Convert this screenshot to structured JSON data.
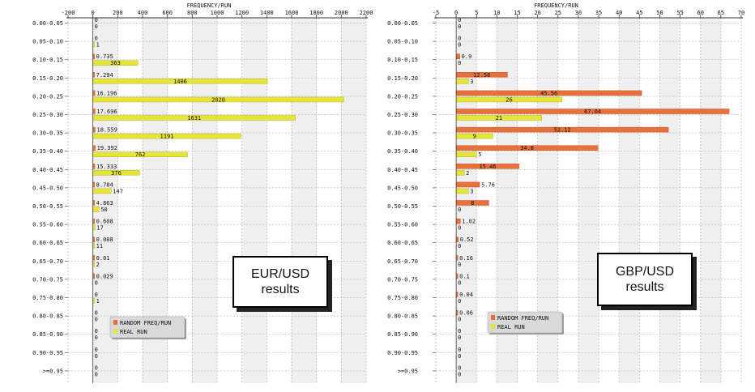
{
  "colors": {
    "random": "#e8703a",
    "real": "#e4e43a",
    "grid": "#bdbdbd",
    "band": "#efefef"
  },
  "chart_data": [
    {
      "type": "bar",
      "orientation": "horizontal",
      "title": "FREQUENCY/RUN",
      "xlim": [
        -200,
        2200
      ],
      "xticks": [
        "-200",
        "0",
        "200",
        "400",
        "600",
        "800",
        "1000",
        "1200",
        "1400",
        "1600",
        "1800",
        "2000",
        "2200"
      ],
      "categories": [
        "0.00-0.05",
        "0.05-0.10",
        "0.10-0.15",
        "0.15-0.20",
        "0.20-0.25",
        "0.25-0.30",
        "0.30-0.35",
        "0.35-0.40",
        "0.40-0.45",
        "0.45-0.50",
        "0.50-0.55",
        "0.55-0.60",
        "0.60-0.65",
        "0.65-0.70",
        "0.70-0.75",
        "0.75-0.80",
        "0.80-0.85",
        "0.85-0.90",
        "0.90-0.95",
        ">=0.95"
      ],
      "series": [
        {
          "name": "RANDOM FREQ/RUN",
          "values": [
            0,
            0,
            0.735,
            7.294,
            16.196,
            17.696,
            18.559,
            19.392,
            15.333,
            8.784,
            4.863,
            0.608,
            0.088,
            0.01,
            0.029,
            0,
            0,
            0,
            0,
            0
          ],
          "labels": [
            "0",
            "0",
            "0.735",
            "7.294",
            "16.196",
            "17.696",
            "18.559",
            "19.392",
            "15.333",
            "8.784",
            "4.863",
            "0.608",
            "0.088",
            "0.01",
            "0.029",
            "0",
            "0",
            "0",
            "0",
            "0"
          ]
        },
        {
          "name": "REAL RUN",
          "values": [
            0,
            1,
            363,
            1406,
            2020,
            1631,
            1191,
            762,
            376,
            147,
            50,
            17,
            11,
            2,
            0,
            1,
            0,
            0,
            0,
            0
          ],
          "labels": [
            "0",
            "1",
            "363",
            "1406",
            "2020",
            "1631",
            "1191",
            "762",
            "376",
            "147",
            "50",
            "17",
            "11",
            "2",
            "0",
            "1",
            "0",
            "0",
            "0",
            "0"
          ]
        }
      ],
      "annotation": [
        "EUR/USD",
        "results"
      ],
      "legend": "bottom-left"
    },
    {
      "type": "bar",
      "orientation": "horizontal",
      "title": "FREQUENCY/RUN",
      "xlim": [
        -5,
        70
      ],
      "xticks": [
        "-5",
        "0",
        "5",
        "10",
        "15",
        "20",
        "25",
        "30",
        "35",
        "40",
        "45",
        "50",
        "55",
        "60",
        "65",
        "70"
      ],
      "categories": [
        "0.00-0.05",
        "0.05-0.10",
        "0.10-0.15",
        "0.15-0.20",
        "0.20-0.25",
        "0.25-0.30",
        "0.30-0.35",
        "0.35-0.40",
        "0.40-0.45",
        "0.45-0.50",
        "0.50-0.55",
        "0.55-0.60",
        "0.60-0.65",
        "0.65-0.70",
        "0.70-0.75",
        "0.75-0.80",
        "0.80-0.85",
        "0.85-0.90",
        "0.90-0.95",
        ">=0.95"
      ],
      "series": [
        {
          "name": "RANDOM FREQ/RUN",
          "values": [
            0,
            0,
            0.9,
            12.58,
            45.56,
            67.04,
            52.12,
            34.8,
            15.46,
            5.76,
            8,
            1.02,
            0.52,
            0.16,
            0.1,
            0.04,
            0.06,
            0,
            0,
            0
          ],
          "labels": [
            "0",
            "0",
            "0.9",
            "12.58",
            "45.56",
            "67.04",
            "52.12",
            "34.8",
            "15.46",
            "5.76",
            "8",
            "1.02",
            "0.52",
            "0.16",
            "0.1",
            "0.04",
            "0.06",
            "0",
            "0",
            "0"
          ]
        },
        {
          "name": "REAL RUN",
          "values": [
            0,
            0,
            0,
            3,
            26,
            21,
            9,
            5,
            2,
            3,
            0,
            0,
            0,
            0,
            0,
            0,
            0,
            0,
            0,
            0
          ],
          "labels": [
            "0",
            "0",
            "0",
            "3",
            "26",
            "21",
            "9",
            "5",
            "2",
            "3",
            "0",
            "0",
            "0",
            "0",
            "0",
            "0",
            "0",
            "0",
            "0",
            "0"
          ]
        }
      ],
      "annotation": [
        "GBP/USD",
        "results"
      ],
      "legend": "bottom-left"
    }
  ]
}
